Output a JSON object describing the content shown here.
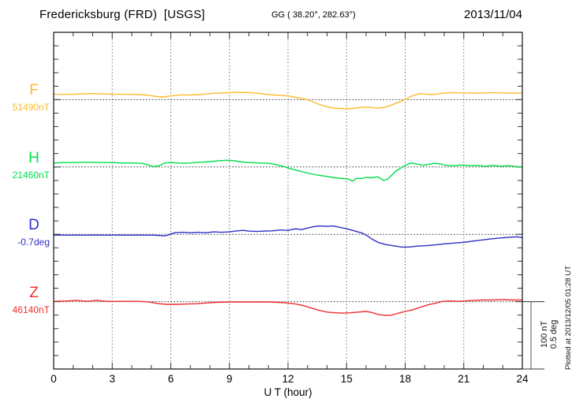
{
  "header": {
    "station": "Fredericksburg (FRD)  [USGS]",
    "coords": "GG ( 38.20°, 282.63°)",
    "date": "2013/11/04"
  },
  "footer": {
    "plotted_at": "Plotted at 2013/12/05 01:28 UT"
  },
  "chart_data": {
    "type": "line",
    "xlabel": "U T (hour)",
    "x_range": [
      0,
      24
    ],
    "x_ticks": [
      0,
      3,
      6,
      9,
      12,
      15,
      18,
      21,
      24
    ],
    "grid": "vertical dotted lines every 3 hours; dotted horizontal baseline per trace",
    "scale_bar": {
      "lines": [
        "100 nT",
        "0.5 deg"
      ],
      "nT_per_bar": 100,
      "deg_per_bar": 0.5
    },
    "series": [
      {
        "name": "F",
        "baseline_label": "51490nT",
        "baseline_value": 51490,
        "unit": "nT",
        "color": "#FFB92E",
        "offsets": [
          [
            0,
            8
          ],
          [
            0.5,
            8
          ],
          [
            1,
            8
          ],
          [
            1.5,
            8.5
          ],
          [
            2,
            9
          ],
          [
            2.5,
            8.5
          ],
          [
            3,
            8
          ],
          [
            3.5,
            8
          ],
          [
            4,
            8
          ],
          [
            4.5,
            7.5
          ],
          [
            5,
            6
          ],
          [
            5.3,
            4.5
          ],
          [
            5.6,
            4
          ],
          [
            6,
            5.5
          ],
          [
            6.5,
            7
          ],
          [
            7,
            7
          ],
          [
            7.5,
            7.5
          ],
          [
            8,
            9
          ],
          [
            8.5,
            10
          ],
          [
            9,
            10.5
          ],
          [
            9.5,
            11
          ],
          [
            10,
            10.5
          ],
          [
            10.5,
            9.5
          ],
          [
            11,
            7.5
          ],
          [
            11.5,
            6.5
          ],
          [
            12,
            5.5
          ],
          [
            12.3,
            4
          ],
          [
            12.6,
            2.5
          ],
          [
            13,
            0
          ],
          [
            13.3,
            -3.5
          ],
          [
            13.6,
            -7
          ],
          [
            14,
            -10.5
          ],
          [
            14.3,
            -12.5
          ],
          [
            14.7,
            -13
          ],
          [
            15,
            -13.5
          ],
          [
            15.3,
            -13
          ],
          [
            15.6,
            -12
          ],
          [
            15.9,
            -11
          ],
          [
            16.2,
            -11.5
          ],
          [
            16.5,
            -12.5
          ],
          [
            16.8,
            -12
          ],
          [
            17,
            -11
          ],
          [
            17.3,
            -8
          ],
          [
            17.6,
            -4.5
          ],
          [
            17.9,
            -1
          ],
          [
            18.2,
            3.5
          ],
          [
            18.5,
            7
          ],
          [
            18.8,
            9
          ],
          [
            19.1,
            8
          ],
          [
            19.4,
            7.5
          ],
          [
            19.7,
            8.5
          ],
          [
            20,
            10
          ],
          [
            20.5,
            10.5
          ],
          [
            21,
            10
          ],
          [
            21.5,
            10
          ],
          [
            22,
            10
          ],
          [
            22.5,
            10.5
          ],
          [
            23,
            10
          ],
          [
            23.5,
            10
          ],
          [
            24,
            10
          ]
        ]
      },
      {
        "name": "H",
        "baseline_label": "21460nT",
        "baseline_value": 21460,
        "unit": "nT",
        "color": "#00DD4B",
        "offsets": [
          [
            0,
            6
          ],
          [
            0.5,
            6.5
          ],
          [
            1,
            6.5
          ],
          [
            1.5,
            7
          ],
          [
            2,
            7
          ],
          [
            2.5,
            6.5
          ],
          [
            3,
            6.5
          ],
          [
            3.5,
            6
          ],
          [
            4,
            6
          ],
          [
            4.5,
            5.5
          ],
          [
            4.8,
            3.5
          ],
          [
            5.1,
            0.5
          ],
          [
            5.4,
            2
          ],
          [
            5.7,
            6
          ],
          [
            6,
            6.5
          ],
          [
            6.3,
            6
          ],
          [
            6.6,
            5.5
          ],
          [
            7,
            6
          ],
          [
            7.5,
            7
          ],
          [
            8,
            8
          ],
          [
            8.4,
            9
          ],
          [
            8.8,
            10
          ],
          [
            9.2,
            9.5
          ],
          [
            9.5,
            8
          ],
          [
            10,
            6.5
          ],
          [
            10.5,
            6
          ],
          [
            11,
            5.5
          ],
          [
            11.4,
            3.5
          ],
          [
            11.8,
            0.5
          ],
          [
            12.2,
            -3
          ],
          [
            12.6,
            -6
          ],
          [
            13,
            -9
          ],
          [
            13.5,
            -12
          ],
          [
            14,
            -14
          ],
          [
            14.4,
            -16
          ],
          [
            14.8,
            -17
          ],
          [
            15.1,
            -18
          ],
          [
            15.3,
            -21
          ],
          [
            15.5,
            -17
          ],
          [
            15.8,
            -17
          ],
          [
            16,
            -15.5
          ],
          [
            16.3,
            -16
          ],
          [
            16.6,
            -14.5
          ],
          [
            16.9,
            -20
          ],
          [
            17.1,
            -18
          ],
          [
            17.3,
            -12.5
          ],
          [
            17.5,
            -6.5
          ],
          [
            17.7,
            -3
          ],
          [
            18,
            2.5
          ],
          [
            18.3,
            6
          ],
          [
            18.6,
            4.5
          ],
          [
            18.9,
            2.5
          ],
          [
            19.2,
            4
          ],
          [
            19.5,
            5.5
          ],
          [
            19.8,
            4.5
          ],
          [
            20.1,
            2.5
          ],
          [
            20.5,
            2
          ],
          [
            20.9,
            3
          ],
          [
            21.3,
            2
          ],
          [
            21.7,
            2.5
          ],
          [
            22.1,
            1
          ],
          [
            22.5,
            2.5
          ],
          [
            22.9,
            1
          ],
          [
            23.3,
            2
          ],
          [
            23.7,
            0.5
          ],
          [
            24,
            0.5
          ]
        ]
      },
      {
        "name": "D",
        "baseline_label": "-0.7deg",
        "baseline_value": -0.7,
        "unit": "deg",
        "color": "#2E2EC8",
        "offsets": [
          [
            0,
            -0.006
          ],
          [
            1,
            -0.006
          ],
          [
            2,
            -0.006
          ],
          [
            3,
            -0.006
          ],
          [
            4,
            -0.006
          ],
          [
            5,
            -0.006
          ],
          [
            5.4,
            -0.009
          ],
          [
            5.7,
            -0.012
          ],
          [
            5.9,
            -0.003
          ],
          [
            6.2,
            0.012
          ],
          [
            6.6,
            0.015
          ],
          [
            7,
            0.012
          ],
          [
            7.4,
            0.015
          ],
          [
            7.8,
            0.012
          ],
          [
            8.2,
            0.018
          ],
          [
            8.6,
            0.015
          ],
          [
            9,
            0.018
          ],
          [
            9.4,
            0.026
          ],
          [
            9.7,
            0.029
          ],
          [
            10,
            0.024
          ],
          [
            10.4,
            0.021
          ],
          [
            10.8,
            0.024
          ],
          [
            11.2,
            0.026
          ],
          [
            11.6,
            0.032
          ],
          [
            12,
            0.029
          ],
          [
            12.4,
            0.041
          ],
          [
            12.7,
            0.035
          ],
          [
            13,
            0.047
          ],
          [
            13.3,
            0.056
          ],
          [
            13.6,
            0.062
          ],
          [
            14,
            0.059
          ],
          [
            14.3,
            0.062
          ],
          [
            14.6,
            0.053
          ],
          [
            15,
            0.041
          ],
          [
            15.4,
            0.026
          ],
          [
            15.8,
            0.009
          ],
          [
            16,
            -0.006
          ],
          [
            16.3,
            -0.035
          ],
          [
            16.6,
            -0.059
          ],
          [
            17,
            -0.076
          ],
          [
            17.4,
            -0.085
          ],
          [
            17.8,
            -0.094
          ],
          [
            18.2,
            -0.094
          ],
          [
            18.6,
            -0.088
          ],
          [
            19,
            -0.085
          ],
          [
            19.5,
            -0.079
          ],
          [
            20,
            -0.071
          ],
          [
            20.5,
            -0.065
          ],
          [
            21,
            -0.059
          ],
          [
            21.5,
            -0.05
          ],
          [
            22,
            -0.041
          ],
          [
            22.5,
            -0.032
          ],
          [
            23,
            -0.026
          ],
          [
            23.4,
            -0.021
          ],
          [
            23.7,
            -0.018
          ],
          [
            24,
            -0.024
          ]
        ]
      },
      {
        "name": "Z",
        "baseline_label": "46140nT",
        "baseline_value": 46140,
        "unit": "nT",
        "color": "#EE2E2E",
        "offsets": [
          [
            0,
            0.5
          ],
          [
            0.7,
            1
          ],
          [
            1.2,
            2
          ],
          [
            1.7,
            0.5
          ],
          [
            2.2,
            2
          ],
          [
            2.7,
            0.5
          ],
          [
            3.2,
            0.5
          ],
          [
            3.7,
            0.5
          ],
          [
            4.2,
            0.5
          ],
          [
            4.7,
            0
          ],
          [
            5,
            -1
          ],
          [
            5.4,
            -3
          ],
          [
            5.8,
            -4
          ],
          [
            6.3,
            -4
          ],
          [
            6.8,
            -3.5
          ],
          [
            7.3,
            -3
          ],
          [
            7.8,
            -2
          ],
          [
            8.3,
            -1
          ],
          [
            9,
            -0.5
          ],
          [
            10,
            -0.5
          ],
          [
            11,
            -0.5
          ],
          [
            11.5,
            -1
          ],
          [
            12,
            -2
          ],
          [
            12.4,
            -3.5
          ],
          [
            12.8,
            -6
          ],
          [
            13.2,
            -9.5
          ],
          [
            13.6,
            -13
          ],
          [
            14,
            -15.5
          ],
          [
            14.4,
            -16.5
          ],
          [
            14.8,
            -17
          ],
          [
            15.2,
            -16.5
          ],
          [
            15.6,
            -15.5
          ],
          [
            16,
            -14.5
          ],
          [
            16.3,
            -16
          ],
          [
            16.6,
            -19
          ],
          [
            17,
            -20.5
          ],
          [
            17.3,
            -20
          ],
          [
            17.6,
            -17.5
          ],
          [
            18,
            -14.5
          ],
          [
            18.4,
            -12
          ],
          [
            18.8,
            -8
          ],
          [
            19.2,
            -4.5
          ],
          [
            19.6,
            -2
          ],
          [
            19.9,
            0.5
          ],
          [
            20.3,
            1
          ],
          [
            20.7,
            0.5
          ],
          [
            21.1,
            1
          ],
          [
            21.5,
            2
          ],
          [
            22,
            2.5
          ],
          [
            22.5,
            2.5
          ],
          [
            23,
            3
          ],
          [
            23.5,
            2.5
          ],
          [
            24,
            2.5
          ]
        ]
      }
    ]
  }
}
